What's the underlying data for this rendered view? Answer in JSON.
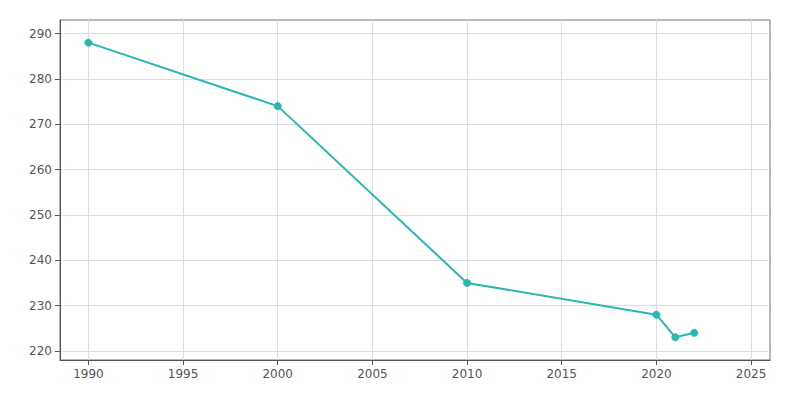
{
  "chart_data": {
    "type": "line",
    "x": [
      1990,
      2000,
      2010,
      2020,
      2021,
      2022
    ],
    "values": [
      288,
      274,
      235,
      228,
      223,
      224
    ],
    "color": "#29b8b0",
    "marker": "circle",
    "xlim": [
      1988.5,
      2026
    ],
    "ylim": [
      218,
      293
    ],
    "xticks": [
      1990,
      1995,
      2000,
      2005,
      2010,
      2015,
      2020,
      2025
    ],
    "yticks": [
      220,
      230,
      240,
      250,
      260,
      270,
      280,
      290
    ],
    "grid": true
  }
}
